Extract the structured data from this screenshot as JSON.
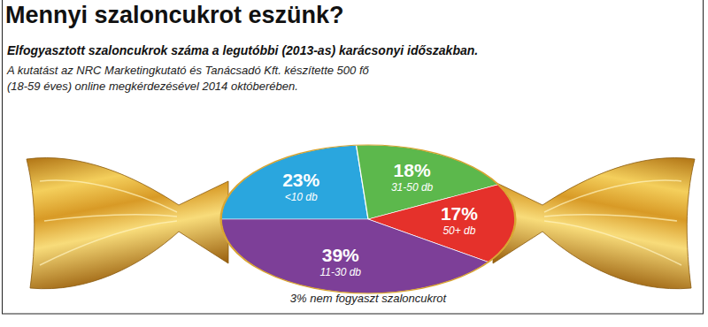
{
  "chart_data": {
    "type": "pie",
    "title": "Mennyi szaloncukrot eszünk?",
    "subtitle": "Elfogyasztott szaloncukrok száma a legutóbbi (2013-as) karácsonyi időszakban.",
    "annotations": [
      "A kutatást az NRC Marketingkutató és Tanácsadó Kft. készítette 500 fő",
      "(18-59 éves) online megkérdezésével 2014 októberében.",
      "3% nem fogyaszt szaloncukrot"
    ],
    "categories": [
      "<10 db",
      "31-50 db",
      "50+ db",
      "11-30 db"
    ],
    "values": [
      23,
      18,
      17,
      39
    ],
    "value_labels": [
      "23%",
      "18%",
      "17%",
      "39%"
    ],
    "colors": [
      "#2aa6de",
      "#5cb84c",
      "#e5312b",
      "#7d3f98"
    ],
    "data_labels": true
  }
}
